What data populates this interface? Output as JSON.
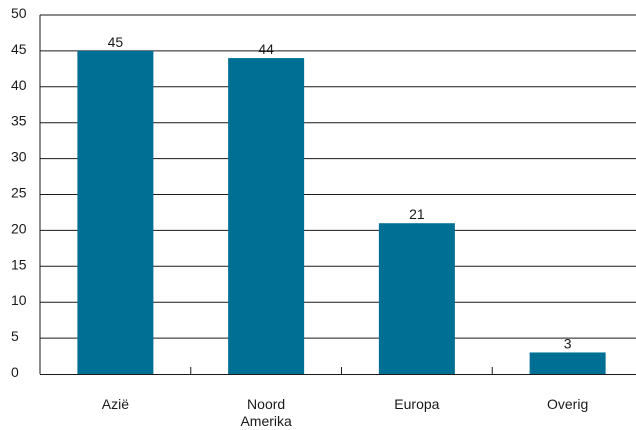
{
  "chart_data": {
    "type": "bar",
    "categories": [
      [
        "Azië"
      ],
      [
        "Noord",
        "Amerika"
      ],
      [
        "Europa"
      ],
      [
        "Overig"
      ]
    ],
    "values": [
      45,
      44,
      21,
      3
    ],
    "data_labels": [
      "45",
      "44",
      "21",
      "3"
    ],
    "y_ticks": [
      0,
      5,
      10,
      15,
      20,
      25,
      30,
      35,
      40,
      45,
      50
    ],
    "ylim": [
      0,
      50
    ],
    "grid": true,
    "legend": "none",
    "colors": {
      "bar": "#006f94",
      "grid": "#1a1a1a",
      "text": "#1a1a1a"
    }
  }
}
